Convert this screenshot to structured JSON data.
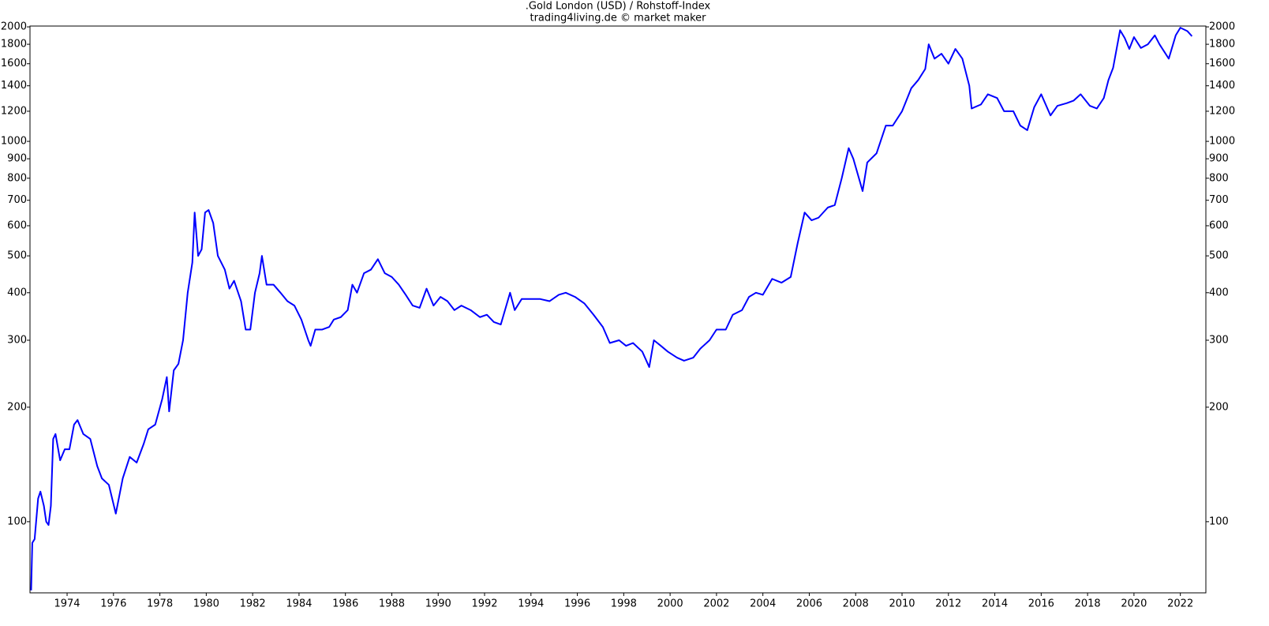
{
  "chart_data": {
    "type": "line",
    "title": ".Gold London (USD) / Rohstoff-Index",
    "subtitle": "trading4living.de © market maker",
    "log_scale": true,
    "mirror_y_axis": true,
    "grid": false,
    "xlim": [
      1972.4,
      2023.1
    ],
    "ylim": [
      65,
      2010
    ],
    "xticks": [
      1974,
      1976,
      1978,
      1980,
      1982,
      1984,
      1986,
      1988,
      1990,
      1992,
      1994,
      1996,
      1998,
      2000,
      2002,
      2004,
      2006,
      2008,
      2010,
      2012,
      2014,
      2016,
      2018,
      2020,
      2022
    ],
    "yticks": [
      100,
      200,
      300,
      400,
      500,
      600,
      700,
      800,
      900,
      1000,
      1200,
      1400,
      1600,
      1800,
      2000
    ],
    "series": [
      {
        "name": "Gold",
        "color": "#0000ff",
        "x": [
          1972.45,
          1972.5,
          1972.6,
          1972.75,
          1972.85,
          1973.0,
          1973.1,
          1973.2,
          1973.3,
          1973.4,
          1973.5,
          1973.7,
          1973.9,
          1974.1,
          1974.3,
          1974.45,
          1974.7,
          1975.0,
          1975.3,
          1975.5,
          1975.8,
          1976.1,
          1976.4,
          1976.7,
          1977.0,
          1977.3,
          1977.5,
          1977.8,
          1978.1,
          1978.3,
          1978.4,
          1978.6,
          1978.8,
          1979.0,
          1979.2,
          1979.4,
          1979.5,
          1979.65,
          1979.8,
          1979.95,
          1980.1,
          1980.3,
          1980.5,
          1980.8,
          1981.0,
          1981.2,
          1981.5,
          1981.7,
          1981.9,
          1982.1,
          1982.3,
          1982.4,
          1982.6,
          1982.9,
          1983.2,
          1983.5,
          1983.8,
          1984.1,
          1984.4,
          1984.5,
          1984.7,
          1985.0,
          1985.3,
          1985.5,
          1985.8,
          1986.1,
          1986.3,
          1986.5,
          1986.8,
          1987.1,
          1987.4,
          1987.7,
          1988.0,
          1988.3,
          1988.6,
          1988.9,
          1989.2,
          1989.5,
          1989.8,
          1990.1,
          1990.4,
          1990.7,
          1991.0,
          1991.4,
          1991.8,
          1992.1,
          1992.4,
          1992.7,
          1993.1,
          1993.3,
          1993.6,
          1994.0,
          1994.4,
          1994.8,
          1995.2,
          1995.5,
          1995.9,
          1996.3,
          1996.7,
          1997.1,
          1997.4,
          1997.8,
          1998.1,
          1998.4,
          1998.8,
          1999.1,
          1999.3,
          1999.6,
          1999.9,
          2000.3,
          2000.6,
          2001.0,
          2001.3,
          2001.7,
          2002.0,
          2002.4,
          2002.7,
          2003.1,
          2003.4,
          2003.7,
          2004.0,
          2004.4,
          2004.8,
          2005.2,
          2005.5,
          2005.8,
          2006.1,
          2006.4,
          2006.8,
          2007.1,
          2007.4,
          2007.7,
          2007.9,
          2008.3,
          2008.5,
          2008.9,
          2009.3,
          2009.6,
          2010.0,
          2010.4,
          2010.7,
          2011.0,
          2011.15,
          2011.4,
          2011.7,
          2012.0,
          2012.3,
          2012.6,
          2012.9,
          2013.0,
          2013.4,
          2013.7,
          2014.1,
          2014.4,
          2014.8,
          2015.1,
          2015.4,
          2015.7,
          2016.0,
          2016.4,
          2016.7,
          2017.1,
          2017.4,
          2017.7,
          2018.1,
          2018.4,
          2018.7,
          2018.9,
          2019.1,
          2019.4,
          2019.6,
          2019.8,
          2020.0,
          2020.3,
          2020.6,
          2020.9,
          2021.1,
          2021.5,
          2021.8,
          2022.0,
          2022.3,
          2022.5
        ],
        "values": [
          66,
          88,
          90,
          115,
          120,
          110,
          100,
          98,
          110,
          165,
          170,
          145,
          155,
          155,
          180,
          185,
          170,
          165,
          140,
          130,
          125,
          105,
          130,
          148,
          143,
          160,
          175,
          180,
          210,
          240,
          195,
          250,
          260,
          300,
          400,
          480,
          650,
          500,
          520,
          650,
          660,
          610,
          500,
          460,
          410,
          430,
          380,
          320,
          320,
          400,
          450,
          500,
          420,
          420,
          400,
          380,
          370,
          340,
          300,
          290,
          320,
          320,
          325,
          340,
          345,
          360,
          420,
          400,
          450,
          460,
          490,
          450,
          440,
          420,
          395,
          370,
          365,
          410,
          370,
          390,
          380,
          360,
          370,
          360,
          345,
          350,
          335,
          330,
          400,
          360,
          385,
          385,
          385,
          380,
          395,
          400,
          390,
          375,
          350,
          325,
          295,
          300,
          290,
          295,
          280,
          255,
          300,
          290,
          280,
          270,
          265,
          270,
          285,
          300,
          320,
          320,
          350,
          360,
          390,
          400,
          395,
          435,
          425,
          440,
          540,
          650,
          620,
          630,
          670,
          680,
          800,
          960,
          900,
          740,
          880,
          930,
          1100,
          1100,
          1200,
          1380,
          1450,
          1550,
          1800,
          1650,
          1700,
          1600,
          1750,
          1650,
          1400,
          1220,
          1250,
          1330,
          1300,
          1200,
          1200,
          1100,
          1070,
          1230,
          1330,
          1170,
          1240,
          1260,
          1280,
          1330,
          1240,
          1220,
          1300,
          1450,
          1560,
          1960,
          1870,
          1750,
          1880,
          1760,
          1800,
          1900,
          1800,
          1650,
          1900,
          1990,
          1950,
          1890
        ]
      }
    ]
  }
}
